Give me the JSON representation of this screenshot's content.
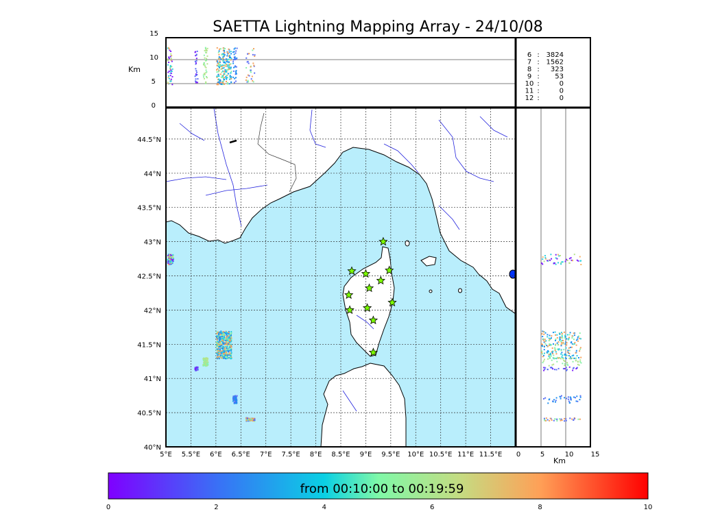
{
  "title": "SAETTA Lightning Mapping Array - 24/10/08",
  "chart_data": {
    "type": "scatter",
    "map": {
      "lon_range": [
        5.0,
        12.0
      ],
      "lat_range": [
        40.0,
        44.95
      ],
      "lon_ticks": [
        "5°E",
        "5.5°E",
        "6°E",
        "6.5°E",
        "7°E",
        "7.5°E",
        "8°E",
        "8.5°E",
        "9°E",
        "9.5°E",
        "10°E",
        "10.5°E",
        "11°E",
        "11.5°E"
      ],
      "lat_ticks": [
        "40°N",
        "40.5°N",
        "41°N",
        "41.5°N",
        "42°N",
        "42.5°N",
        "43°N",
        "43.5°N",
        "44°N",
        "44.5°N"
      ],
      "grid": true,
      "sea_color": "#b9eefc",
      "stations": [
        {
          "lon": 9.35,
          "lat": 43.0
        },
        {
          "lon": 8.72,
          "lat": 42.57
        },
        {
          "lon": 9.0,
          "lat": 42.53
        },
        {
          "lon": 9.47,
          "lat": 42.58
        },
        {
          "lon": 9.3,
          "lat": 42.43
        },
        {
          "lon": 9.07,
          "lat": 42.32
        },
        {
          "lon": 8.66,
          "lat": 42.22
        },
        {
          "lon": 9.53,
          "lat": 42.11
        },
        {
          "lon": 8.68,
          "lat": 42.0
        },
        {
          "lon": 9.03,
          "lat": 42.03
        },
        {
          "lon": 9.15,
          "lat": 41.85
        },
        {
          "lon": 9.15,
          "lat": 41.38
        }
      ],
      "station_color": "#7cfc00",
      "clusters": [
        {
          "lon": 5.08,
          "lat": 42.75,
          "w": 0.12,
          "h": 0.15,
          "colors": [
            "#7a1dfb",
            "#2ad0e0",
            "#b5e38a",
            "#f5b266"
          ]
        },
        {
          "lon": 6.15,
          "lat": 41.5,
          "w": 0.3,
          "h": 0.4,
          "colors": [
            "#1e8ef0",
            "#2ad0e0",
            "#88f2a8",
            "#f5a05a"
          ]
        },
        {
          "lon": 5.78,
          "lat": 41.25,
          "w": 0.1,
          "h": 0.12,
          "colors": [
            "#b5e38a",
            "#88f2a8"
          ]
        },
        {
          "lon": 5.6,
          "lat": 41.15,
          "w": 0.06,
          "h": 0.05,
          "colors": [
            "#7a1dfb",
            "#5a6ef5"
          ]
        },
        {
          "lon": 6.37,
          "lat": 40.7,
          "w": 0.08,
          "h": 0.12,
          "colors": [
            "#1e8ef0",
            "#5a6ef5"
          ]
        },
        {
          "lon": 6.68,
          "lat": 40.41,
          "w": 0.18,
          "h": 0.05,
          "colors": [
            "#5a6ef5",
            "#88f2a8",
            "#f5a05a"
          ]
        }
      ]
    },
    "height_panel": {
      "ylabel": "Km",
      "ylim": [
        0,
        15
      ],
      "yticks": [
        "0",
        "5",
        "10",
        "15"
      ],
      "hlines": [
        5,
        10
      ]
    },
    "side_panel": {
      "xlabel": "Km",
      "xlim": [
        0,
        15
      ],
      "xticks": [
        "0",
        "5",
        "10",
        "15"
      ],
      "vlines": [
        5,
        10
      ]
    },
    "station_counts": [
      {
        "stations": "6",
        "count": "3824",
        "color": "#000000"
      },
      {
        "stations": "7",
        "count": "1562",
        "color": "#ff0000"
      },
      {
        "stations": "8",
        "count": "323",
        "color": "#000000"
      },
      {
        "stations": "9",
        "count": "53",
        "color": "#000000"
      },
      {
        "stations": "10",
        "count": "0",
        "color": "#000000"
      },
      {
        "stations": "11",
        "count": "0",
        "color": "#000000"
      },
      {
        "stations": "12",
        "count": "0",
        "color": "#000000"
      }
    ],
    "colorbar": {
      "label": "from 00:10:00 to 00:19:59",
      "range": [
        0,
        10
      ],
      "ticks": [
        "0",
        "2",
        "4",
        "6",
        "8",
        "10"
      ],
      "colormap": "rainbow"
    }
  }
}
